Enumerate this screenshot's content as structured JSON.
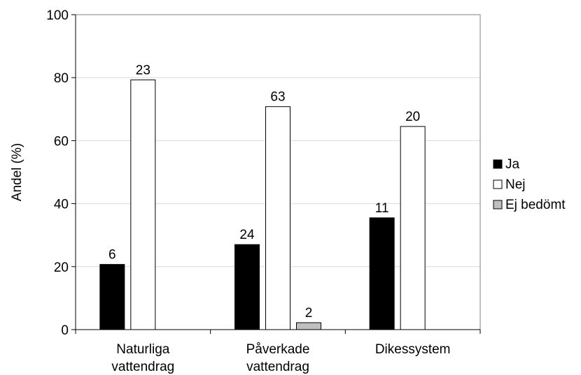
{
  "chart_data": {
    "type": "bar",
    "title": "",
    "xlabel": "",
    "ylabel": "Andel (%)",
    "ylim": [
      0,
      100
    ],
    "yticks": [
      0,
      20,
      40,
      60,
      80,
      100
    ],
    "grid": true,
    "legend_position": "right",
    "categories": [
      [
        "Naturliga",
        "vattendrag"
      ],
      [
        "Påverkade",
        "vattendrag"
      ],
      [
        "Dikessystem"
      ]
    ],
    "series": [
      {
        "name": "Ja",
        "color": "#000000",
        "values": [
          20.7,
          27.0,
          35.5
        ],
        "labels": [
          "6",
          "24",
          "11"
        ]
      },
      {
        "name": "Nej",
        "color": "#ffffff",
        "values": [
          79.3,
          70.8,
          64.5
        ],
        "labels": [
          "23",
          "63",
          "20"
        ]
      },
      {
        "name": "Ej bedömt",
        "color": "#bfbfbf",
        "values": [
          0,
          2.2,
          0
        ],
        "labels": [
          "",
          "2",
          ""
        ]
      }
    ]
  }
}
